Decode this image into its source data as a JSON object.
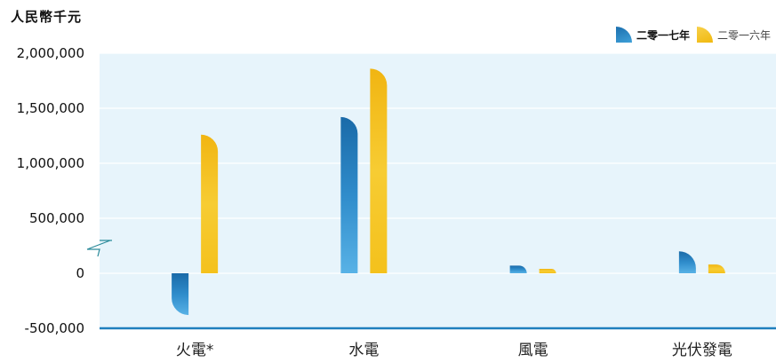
{
  "unit_label": "人民幣千元",
  "legend": [
    {
      "label": "二零一七年",
      "color": "#1f7fbd"
    },
    {
      "label": "二零一六年",
      "color": "#f5c21b"
    }
  ],
  "chart_data": {
    "type": "bar",
    "categories": [
      "火電*",
      "水電",
      "風電",
      "光伏發電"
    ],
    "series": [
      {
        "name": "二零一七年",
        "values": [
          -380000,
          1420000,
          70000,
          200000
        ]
      },
      {
        "name": "二零一六年",
        "values": [
          1260000,
          1860000,
          40000,
          80000
        ]
      }
    ],
    "yticks": [
      "2,000,000",
      "1,500,000",
      "1,000,000",
      "500,000",
      "0",
      "-500,000"
    ],
    "ylim": [
      -500000,
      2000000
    ],
    "axis_break": true,
    "grid": true
  }
}
